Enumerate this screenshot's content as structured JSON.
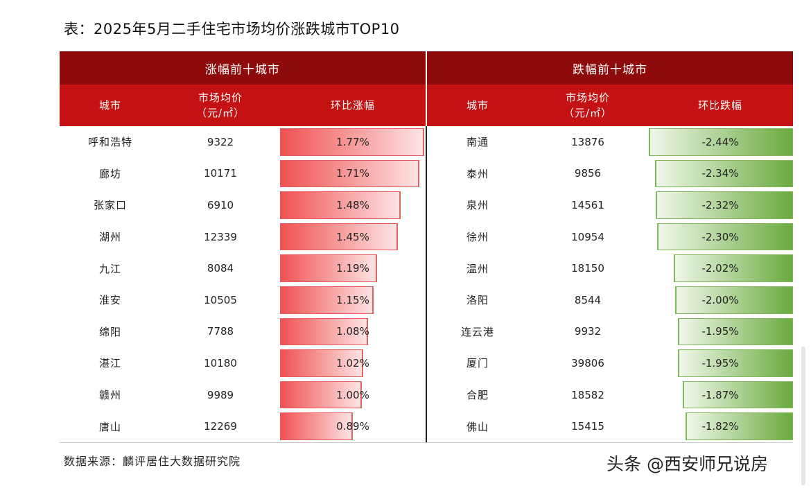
{
  "title": "表：2025年5月二手住宅市场均价涨跌城市TOP10",
  "rise": {
    "heading": "涨幅前十城市",
    "col_city": "城市",
    "col_price_1": "市场均价",
    "col_price_2": "（元/㎡）",
    "col_change": "环比涨幅",
    "rows": [
      {
        "city": "呼和浩特",
        "price": "9322",
        "change": "1.77%",
        "value": 1.77
      },
      {
        "city": "廊坊",
        "price": "10171",
        "change": "1.71%",
        "value": 1.71
      },
      {
        "city": "张家口",
        "price": "6910",
        "change": "1.48%",
        "value": 1.48
      },
      {
        "city": "湖州",
        "price": "12339",
        "change": "1.45%",
        "value": 1.45
      },
      {
        "city": "九江",
        "price": "8084",
        "change": "1.19%",
        "value": 1.19
      },
      {
        "city": "淮安",
        "price": "10505",
        "change": "1.15%",
        "value": 1.15
      },
      {
        "city": "绵阳",
        "price": "7788",
        "change": "1.08%",
        "value": 1.08
      },
      {
        "city": "湛江",
        "price": "10180",
        "change": "1.02%",
        "value": 1.02
      },
      {
        "city": "赣州",
        "price": "9989",
        "change": "1.00%",
        "value": 1.0
      },
      {
        "city": "唐山",
        "price": "12269",
        "change": "0.89%",
        "value": 0.89
      }
    ]
  },
  "fall": {
    "heading": "跌幅前十城市",
    "col_city": "城市",
    "col_price_1": "市场均价",
    "col_price_2": "（元/㎡）",
    "col_change": "环比跌幅",
    "rows": [
      {
        "city": "南通",
        "price": "13876",
        "change": "-2.44%",
        "value": -2.44
      },
      {
        "city": "泰州",
        "price": "9856",
        "change": "-2.34%",
        "value": -2.34
      },
      {
        "city": "泉州",
        "price": "14561",
        "change": "-2.32%",
        "value": -2.32
      },
      {
        "city": "徐州",
        "price": "10954",
        "change": "-2.30%",
        "value": -2.3
      },
      {
        "city": "温州",
        "price": "18150",
        "change": "-2.02%",
        "value": -2.02
      },
      {
        "city": "洛阳",
        "price": "8544",
        "change": "-2.00%",
        "value": -2.0
      },
      {
        "city": "连云港",
        "price": "9932",
        "change": "-1.95%",
        "value": -1.95
      },
      {
        "city": "厦门",
        "price": "39806",
        "change": "-1.95%",
        "value": -1.95
      },
      {
        "city": "合肥",
        "price": "18582",
        "change": "-1.87%",
        "value": -1.87
      },
      {
        "city": "佛山",
        "price": "15415",
        "change": "-1.82%",
        "value": -1.82
      }
    ]
  },
  "source": "数据来源：麟评居住大数据研究院",
  "watermark": "头条 @西安师兄说房",
  "colors": {
    "band": "#8f0a0a",
    "header": "#c41212",
    "up": "#f05252",
    "down": "#6aaa3e"
  }
}
